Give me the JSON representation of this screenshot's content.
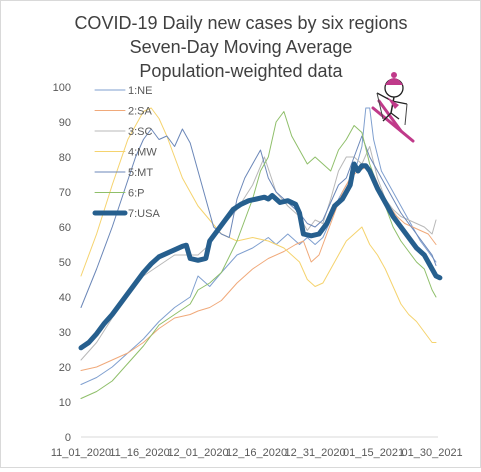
{
  "chart_data": {
    "type": "line",
    "title_lines": [
      "COVID-19 Daily new cases by six regions",
      "Seven-Day Moving Average",
      "Population-weighted data"
    ],
    "ylim": [
      0,
      100
    ],
    "yticks": [
      0,
      10,
      20,
      30,
      40,
      50,
      60,
      70,
      80,
      90,
      100
    ],
    "x_range_days": [
      0,
      91
    ],
    "xticks": [
      {
        "day": 0,
        "label": "11_01_2020"
      },
      {
        "day": 15,
        "label": "11_16_2020"
      },
      {
        "day": 30,
        "label": "12_01_2020"
      },
      {
        "day": 45,
        "label": "12_16_2020"
      },
      {
        "day": 60,
        "label": "12_31_2020"
      },
      {
        "day": 75,
        "label": "01_15_2021"
      },
      {
        "day": 90,
        "label": "01_30_2021"
      }
    ],
    "grid": false,
    "legend_position": "top-left",
    "series": [
      {
        "name": "1:NE",
        "color": "#7f9fcf",
        "width": 1,
        "points": [
          [
            0,
            15
          ],
          [
            4,
            17
          ],
          [
            8,
            20
          ],
          [
            12,
            24
          ],
          [
            16,
            28
          ],
          [
            20,
            33
          ],
          [
            24,
            37
          ],
          [
            28,
            40
          ],
          [
            30,
            46
          ],
          [
            33,
            43
          ],
          [
            36,
            47
          ],
          [
            40,
            52
          ],
          [
            44,
            54
          ],
          [
            48,
            57
          ],
          [
            50,
            55
          ],
          [
            53,
            58
          ],
          [
            56,
            55
          ],
          [
            58,
            57
          ],
          [
            60,
            55
          ],
          [
            62,
            57
          ],
          [
            64,
            62
          ],
          [
            66,
            68
          ],
          [
            68,
            72
          ],
          [
            70,
            75
          ],
          [
            72,
            83
          ],
          [
            73,
            94
          ],
          [
            74,
            94
          ],
          [
            75,
            85
          ],
          [
            77,
            76
          ],
          [
            79,
            72
          ],
          [
            81,
            68
          ],
          [
            83,
            64
          ],
          [
            85,
            60
          ],
          [
            87,
            56
          ],
          [
            89,
            53
          ],
          [
            91,
            50
          ]
        ]
      },
      {
        "name": "2:SA",
        "color": "#f0a97a",
        "width": 1,
        "points": [
          [
            0,
            19
          ],
          [
            4,
            20
          ],
          [
            8,
            22
          ],
          [
            12,
            24
          ],
          [
            16,
            27
          ],
          [
            20,
            31
          ],
          [
            24,
            34
          ],
          [
            28,
            35
          ],
          [
            30,
            36
          ],
          [
            33,
            37
          ],
          [
            36,
            39
          ],
          [
            40,
            44
          ],
          [
            44,
            48
          ],
          [
            48,
            51
          ],
          [
            52,
            53
          ],
          [
            55,
            55
          ],
          [
            57,
            56
          ],
          [
            59,
            50
          ],
          [
            61,
            52
          ],
          [
            63,
            58
          ],
          [
            65,
            64
          ],
          [
            67,
            70
          ],
          [
            69,
            74
          ],
          [
            71,
            76
          ],
          [
            73,
            77
          ],
          [
            75,
            75
          ],
          [
            77,
            70
          ],
          [
            79,
            66
          ],
          [
            81,
            63
          ],
          [
            83,
            61
          ],
          [
            85,
            60
          ],
          [
            87,
            59
          ],
          [
            89,
            58
          ],
          [
            91,
            55
          ]
        ]
      },
      {
        "name": "3:SC",
        "color": "#b8b8b8",
        "width": 1,
        "points": [
          [
            0,
            22
          ],
          [
            4,
            27
          ],
          [
            8,
            34
          ],
          [
            12,
            40
          ],
          [
            16,
            46
          ],
          [
            20,
            49
          ],
          [
            24,
            52
          ],
          [
            28,
            52
          ],
          [
            30,
            52
          ],
          [
            33,
            55
          ],
          [
            36,
            60
          ],
          [
            40,
            65
          ],
          [
            44,
            72
          ],
          [
            47,
            80
          ],
          [
            50,
            70
          ],
          [
            53,
            66
          ],
          [
            56,
            63
          ],
          [
            58,
            59
          ],
          [
            60,
            62
          ],
          [
            62,
            61
          ],
          [
            64,
            68
          ],
          [
            66,
            76
          ],
          [
            68,
            80
          ],
          [
            70,
            80
          ],
          [
            72,
            78
          ],
          [
            74,
            83
          ],
          [
            76,
            74
          ],
          [
            78,
            68
          ],
          [
            80,
            65
          ],
          [
            82,
            63
          ],
          [
            84,
            62
          ],
          [
            86,
            61
          ],
          [
            88,
            60
          ],
          [
            90,
            58
          ],
          [
            91,
            62
          ]
        ]
      },
      {
        "name": "4:MW",
        "color": "#f5d36e",
        "width": 1,
        "points": [
          [
            0,
            46
          ],
          [
            4,
            58
          ],
          [
            8,
            72
          ],
          [
            12,
            85
          ],
          [
            16,
            93
          ],
          [
            18,
            94
          ],
          [
            20,
            91
          ],
          [
            22,
            86
          ],
          [
            24,
            80
          ],
          [
            26,
            74
          ],
          [
            28,
            70
          ],
          [
            30,
            66
          ],
          [
            33,
            62
          ],
          [
            36,
            58
          ],
          [
            40,
            56
          ],
          [
            44,
            57
          ],
          [
            48,
            56
          ],
          [
            52,
            54
          ],
          [
            56,
            50
          ],
          [
            58,
            45
          ],
          [
            60,
            43
          ],
          [
            62,
            44
          ],
          [
            64,
            48
          ],
          [
            66,
            52
          ],
          [
            68,
            56
          ],
          [
            70,
            58
          ],
          [
            72,
            60
          ],
          [
            74,
            55
          ],
          [
            76,
            52
          ],
          [
            78,
            48
          ],
          [
            80,
            43
          ],
          [
            82,
            38
          ],
          [
            84,
            35
          ],
          [
            86,
            33
          ],
          [
            88,
            30
          ],
          [
            90,
            27
          ],
          [
            91,
            27
          ]
        ]
      },
      {
        "name": "5:MT",
        "color": "#6b87b8",
        "width": 1,
        "points": [
          [
            0,
            37
          ],
          [
            4,
            48
          ],
          [
            8,
            60
          ],
          [
            11,
            70
          ],
          [
            14,
            80
          ],
          [
            16,
            85
          ],
          [
            18,
            88
          ],
          [
            20,
            85
          ],
          [
            22,
            86
          ],
          [
            24,
            83
          ],
          [
            26,
            88
          ],
          [
            28,
            84
          ],
          [
            30,
            76
          ],
          [
            32,
            68
          ],
          [
            34,
            60
          ],
          [
            36,
            58
          ],
          [
            38,
            57
          ],
          [
            40,
            68
          ],
          [
            42,
            74
          ],
          [
            44,
            78
          ],
          [
            46,
            82
          ],
          [
            48,
            74
          ],
          [
            50,
            70
          ],
          [
            52,
            68
          ],
          [
            54,
            66
          ],
          [
            56,
            64
          ],
          [
            58,
            61
          ],
          [
            60,
            60
          ],
          [
            62,
            62
          ],
          [
            64,
            67
          ],
          [
            66,
            72
          ],
          [
            68,
            74
          ],
          [
            70,
            80
          ],
          [
            72,
            86
          ],
          [
            74,
            80
          ],
          [
            76,
            76
          ],
          [
            78,
            72
          ],
          [
            80,
            68
          ],
          [
            82,
            64
          ],
          [
            84,
            61
          ],
          [
            86,
            58
          ],
          [
            88,
            55
          ],
          [
            90,
            52
          ],
          [
            91,
            49
          ]
        ]
      },
      {
        "name": "6:P",
        "color": "#8fbf6a",
        "width": 1,
        "points": [
          [
            0,
            11
          ],
          [
            4,
            13
          ],
          [
            8,
            16
          ],
          [
            12,
            21
          ],
          [
            16,
            26
          ],
          [
            20,
            32
          ],
          [
            24,
            35
          ],
          [
            28,
            38
          ],
          [
            30,
            42
          ],
          [
            33,
            44
          ],
          [
            36,
            47
          ],
          [
            40,
            56
          ],
          [
            44,
            68
          ],
          [
            46,
            76
          ],
          [
            48,
            80
          ],
          [
            50,
            90
          ],
          [
            52,
            93
          ],
          [
            54,
            86
          ],
          [
            56,
            82
          ],
          [
            58,
            78
          ],
          [
            60,
            80
          ],
          [
            62,
            78
          ],
          [
            64,
            76
          ],
          [
            66,
            82
          ],
          [
            68,
            85
          ],
          [
            70,
            89
          ],
          [
            72,
            87
          ],
          [
            74,
            78
          ],
          [
            76,
            72
          ],
          [
            78,
            66
          ],
          [
            80,
            60
          ],
          [
            82,
            56
          ],
          [
            84,
            53
          ],
          [
            86,
            50
          ],
          [
            88,
            48
          ],
          [
            90,
            42
          ],
          [
            91,
            40
          ]
        ]
      },
      {
        "name": "7:USA",
        "color": "#265f8e",
        "width": 5,
        "points": [
          [
            0,
            25.5
          ],
          [
            2,
            27
          ],
          [
            4,
            29.5
          ],
          [
            6,
            32.5
          ],
          [
            8,
            35
          ],
          [
            10,
            38
          ],
          [
            12,
            41
          ],
          [
            14,
            44
          ],
          [
            16,
            47
          ],
          [
            18,
            49.5
          ],
          [
            20,
            51.5
          ],
          [
            22,
            52.5
          ],
          [
            24,
            53.5
          ],
          [
            26,
            54.5
          ],
          [
            27,
            54.8
          ],
          [
            28,
            51
          ],
          [
            30,
            50.5
          ],
          [
            32,
            51
          ],
          [
            33,
            56
          ],
          [
            35,
            59
          ],
          [
            37,
            62
          ],
          [
            39,
            65
          ],
          [
            41,
            66.5
          ],
          [
            43,
            67.5
          ],
          [
            45,
            68
          ],
          [
            47,
            68.5
          ],
          [
            48,
            68
          ],
          [
            49,
            69
          ],
          [
            51,
            67
          ],
          [
            53,
            67.5
          ],
          [
            55,
            66.5
          ],
          [
            56,
            64
          ],
          [
            57,
            58
          ],
          [
            59,
            57.5
          ],
          [
            61,
            58
          ],
          [
            63,
            61
          ],
          [
            65,
            66
          ],
          [
            67,
            68
          ],
          [
            69,
            72
          ],
          [
            70,
            78
          ],
          [
            71,
            76
          ],
          [
            72,
            77.5
          ],
          [
            73,
            77.5
          ],
          [
            74,
            76
          ],
          [
            76,
            71
          ],
          [
            78,
            67
          ],
          [
            80,
            63
          ],
          [
            82,
            60
          ],
          [
            84,
            57
          ],
          [
            86,
            54
          ],
          [
            88,
            52
          ],
          [
            89,
            50
          ],
          [
            90,
            48
          ],
          [
            91,
            46
          ],
          [
            92,
            45.5
          ]
        ]
      }
    ]
  }
}
